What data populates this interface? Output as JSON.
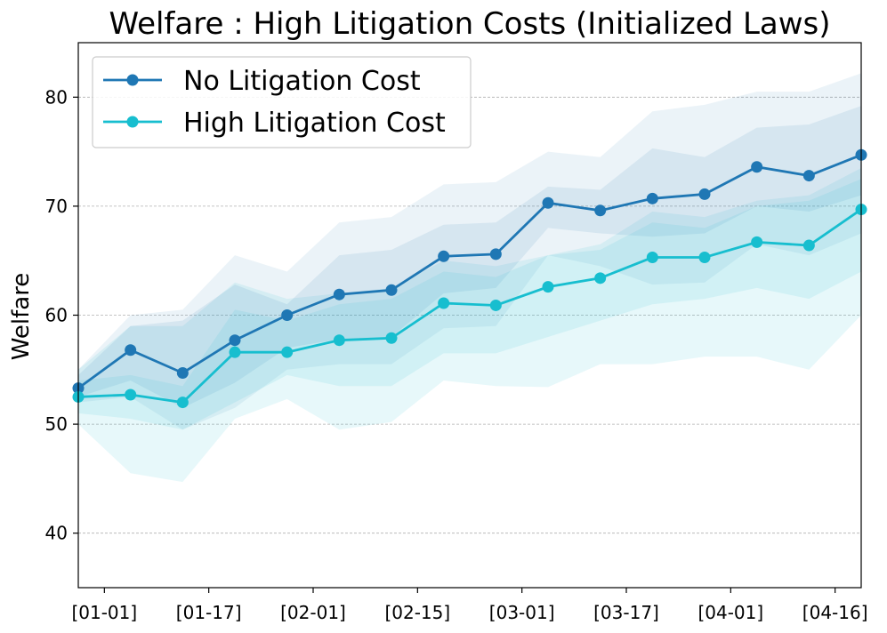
{
  "chart_data": {
    "type": "line",
    "title": "Welfare : High Litigation Costs (Initialized Laws)",
    "xlabel": "",
    "ylabel": "Welfare",
    "ylim": [
      35,
      85
    ],
    "xlim": [
      0,
      15
    ],
    "yticks": [
      40,
      50,
      60,
      70,
      80
    ],
    "xticks": [
      {
        "x": 0.5,
        "label": "[01-01]"
      },
      {
        "x": 2.5,
        "label": "[01-17]"
      },
      {
        "x": 4.5,
        "label": "[02-01]"
      },
      {
        "x": 6.5,
        "label": "[02-15]"
      },
      {
        "x": 8.5,
        "label": "[03-01]"
      },
      {
        "x": 10.5,
        "label": "[03-17]"
      },
      {
        "x": 12.5,
        "label": "[04-01]"
      },
      {
        "x": 14.5,
        "label": "[04-16]"
      }
    ],
    "grid": "y-dashed",
    "legend_position": "top-left",
    "x": [
      0,
      1,
      2,
      3,
      4,
      5,
      6,
      7,
      8,
      9,
      10,
      11,
      12,
      13,
      14,
      15
    ],
    "series": [
      {
        "name": "No Litigation Cost",
        "color": "#1f77b4",
        "values": [
          53.3,
          56.8,
          54.7,
          57.7,
          60.0,
          61.9,
          62.3,
          65.4,
          65.6,
          70.3,
          69.6,
          70.7,
          71.1,
          73.6,
          72.8,
          74.7
        ],
        "inner_band": {
          "lower": [
            52.5,
            54.0,
            51.5,
            53.8,
            57.0,
            57.8,
            58.0,
            62.0,
            62.5,
            68.0,
            67.5,
            67.2,
            67.5,
            70.0,
            69.5,
            71.0
          ],
          "upper": [
            54.5,
            59.0,
            59.5,
            62.8,
            61.0,
            65.5,
            66.0,
            68.3,
            68.5,
            71.8,
            71.5,
            75.3,
            74.5,
            77.2,
            77.5,
            79.2
          ]
        },
        "outer_band": {
          "lower": [
            52.0,
            52.5,
            49.5,
            51.5,
            55.0,
            55.5,
            55.5,
            58.8,
            59.0,
            65.5,
            64.5,
            62.8,
            63.0,
            66.5,
            65.5,
            67.5
          ],
          "upper": [
            55.0,
            60.0,
            60.5,
            65.5,
            64.0,
            68.5,
            69.0,
            72.0,
            72.2,
            75.0,
            74.5,
            78.7,
            79.3,
            80.5,
            80.5,
            82.2
          ]
        }
      },
      {
        "name": "High Litigation Cost",
        "color": "#17becf",
        "values": [
          52.5,
          52.7,
          52.0,
          56.6,
          56.6,
          57.7,
          57.9,
          61.1,
          60.9,
          62.6,
          63.4,
          65.3,
          65.3,
          66.7,
          66.4,
          69.7
        ],
        "inner_band": {
          "lower": [
            51.0,
            50.5,
            49.5,
            52.0,
            54.5,
            53.5,
            53.5,
            56.5,
            56.5,
            58.0,
            59.5,
            61.0,
            61.5,
            62.5,
            61.5,
            64.0
          ],
          "upper": [
            54.0,
            54.5,
            53.5,
            60.5,
            59.5,
            61.0,
            61.5,
            64.0,
            63.5,
            65.5,
            66.0,
            68.5,
            68.0,
            70.0,
            70.5,
            72.5
          ]
        },
        "outer_band": {
          "lower": [
            50.0,
            45.5,
            44.7,
            50.5,
            52.3,
            49.5,
            50.2,
            54.0,
            53.5,
            53.4,
            55.5,
            55.5,
            56.2,
            56.2,
            55.0,
            60.0
          ],
          "upper": [
            55.0,
            59.0,
            59.0,
            63.0,
            61.5,
            62.0,
            62.5,
            65.0,
            64.5,
            65.5,
            66.5,
            69.5,
            69.0,
            70.5,
            71.0,
            73.5
          ]
        }
      }
    ]
  }
}
